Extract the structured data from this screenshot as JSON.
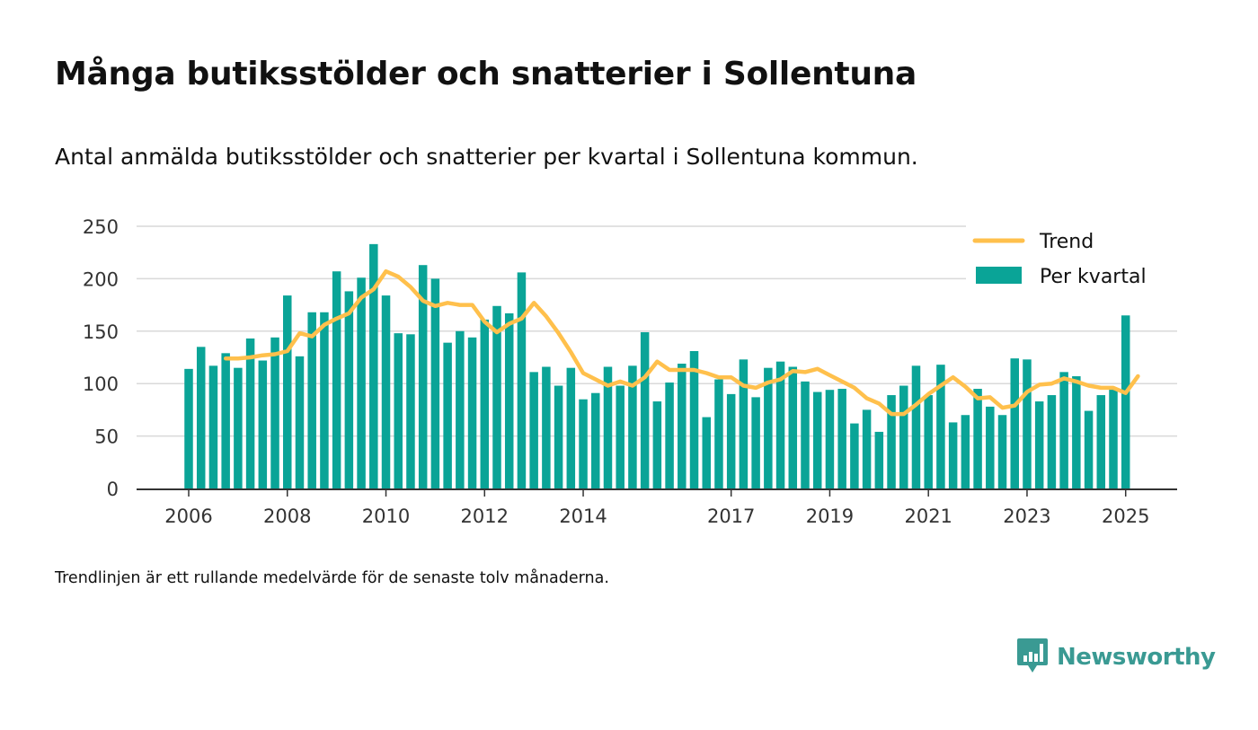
{
  "title": "Många butiksstölder och snatterier i Sollentuna",
  "subtitle": "Antal anmälda butiksstölder och snatterier per kvartal i Sollentuna kommun.",
  "note": "Trendlinjen är ett rullande medelvärde för de senaste tolv månaderna.",
  "brand": {
    "name": "Newsworthy",
    "icon": "newsworthy-logo-icon",
    "color": "#3a9a93"
  },
  "chart_data": {
    "type": "bar",
    "x_start": "2006-Q1",
    "ylim": [
      0,
      250
    ],
    "yticks": [
      0,
      50,
      100,
      150,
      200,
      250
    ],
    "xtick_labels": [
      "2006",
      "2008",
      "2010",
      "2012",
      "2014",
      "2017",
      "2019",
      "2021",
      "2023",
      "2025"
    ],
    "grid": true,
    "legend_position": "top-right",
    "legend": [
      {
        "label": "Trend",
        "type": "line",
        "color": "#ffc04c"
      },
      {
        "label": "Per kvartal",
        "type": "bar",
        "color": "#0aa497"
      }
    ],
    "series": [
      {
        "name": "Per kvartal",
        "color": "#0aa497",
        "values": [
          114,
          135,
          117,
          129,
          115,
          143,
          122,
          144,
          184,
          126,
          168,
          168,
          207,
          188,
          201,
          233,
          184,
          148,
          147,
          213,
          200,
          139,
          150,
          144,
          161,
          174,
          167,
          206,
          111,
          116,
          98,
          115,
          85,
          91,
          116,
          98,
          117,
          149,
          83,
          101,
          119,
          131,
          68,
          104,
          90,
          123,
          87,
          115,
          121,
          116,
          102,
          92,
          94,
          95,
          62,
          75,
          54,
          89,
          98,
          117,
          89,
          118,
          63,
          70,
          95,
          78,
          70,
          124,
          123,
          83,
          89,
          111,
          107,
          74,
          89,
          95,
          165
        ]
      },
      {
        "name": "Trend",
        "color": "#ffc04c",
        "start_index": 3,
        "values": [
          124,
          124,
          125,
          127,
          128,
          131,
          148,
          145,
          156,
          162,
          167,
          182,
          190,
          207,
          202,
          192,
          179,
          174,
          177,
          175,
          175,
          159,
          149,
          157,
          162,
          177,
          164,
          148,
          130,
          110,
          104,
          98,
          102,
          98,
          106,
          121,
          113,
          113,
          113,
          110,
          106,
          106,
          98,
          96,
          101,
          104,
          112,
          111,
          114,
          108,
          102,
          96,
          86,
          81,
          71,
          71,
          80,
          90,
          98,
          106,
          97,
          86,
          87,
          77,
          79,
          92,
          99,
          100,
          105,
          102,
          98,
          96,
          96,
          91,
          107
        ]
      }
    ]
  }
}
